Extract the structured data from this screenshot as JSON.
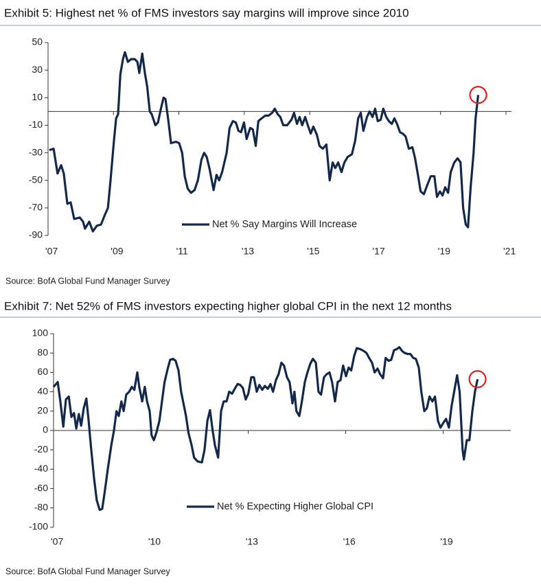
{
  "chart_data": [
    {
      "type": "line",
      "title": "Exhibit 5: Highest net % of FMS investors say margins will improve since 2010",
      "source": "Source: BofA Global Fund Manager Survey",
      "x": [
        2007.04,
        2007.17,
        2007.29,
        2007.4,
        2007.48,
        2007.59,
        2007.69,
        2007.8,
        2007.97,
        2008.07,
        2008.13,
        2008.26,
        2008.37,
        2008.49,
        2008.62,
        2008.72,
        2008.83,
        2008.91,
        2009.0,
        2009.08,
        2009.14,
        2009.21,
        2009.29,
        2009.35,
        2009.44,
        2009.54,
        2009.65,
        2009.73,
        2009.79,
        2009.88,
        2009.96,
        2010.03,
        2010.11,
        2010.17,
        2010.28,
        2010.36,
        2010.45,
        2010.53,
        2010.59,
        2010.68,
        2010.76,
        2010.91,
        2011.01,
        2011.1,
        2011.18,
        2011.27,
        2011.37,
        2011.48,
        2011.58,
        2011.69,
        2011.77,
        2011.85,
        2011.94,
        2012.06,
        2012.15,
        2012.23,
        2012.32,
        2012.46,
        2012.55,
        2012.65,
        2012.74,
        2012.82,
        2012.9,
        2012.99,
        2013.07,
        2013.18,
        2013.26,
        2013.35,
        2013.43,
        2013.53,
        2013.64,
        2013.74,
        2013.85,
        2013.93,
        2014.02,
        2014.1,
        2014.19,
        2014.31,
        2014.44,
        2014.52,
        2014.61,
        2014.69,
        2014.77,
        2014.86,
        2014.94,
        2015.03,
        2015.11,
        2015.22,
        2015.3,
        2015.4,
        2015.51,
        2015.61,
        2015.7,
        2015.78,
        2015.87,
        2015.97,
        2016.06,
        2016.16,
        2016.29,
        2016.39,
        2016.48,
        2016.56,
        2016.64,
        2016.75,
        2016.83,
        2016.92,
        2017.0,
        2017.08,
        2017.17,
        2017.25,
        2017.34,
        2017.42,
        2017.51,
        2017.59,
        2017.67,
        2017.76,
        2017.84,
        2017.93,
        2018.03,
        2018.14,
        2018.22,
        2018.3,
        2018.39,
        2018.49,
        2018.6,
        2018.7,
        2018.81,
        2018.89,
        2018.98,
        2019.06,
        2019.14,
        2019.23,
        2019.31,
        2019.42,
        2019.52,
        2019.61,
        2019.69,
        2019.77,
        2019.84,
        2019.92,
        2020.01,
        2020.07,
        2020.15
      ],
      "series": [
        {
          "name": "Net % Say Margins Will Increase",
          "color": "#14284b",
          "values": [
            -28,
            -27,
            -45,
            -39,
            -45,
            -67,
            -66,
            -78,
            -77,
            -80,
            -85,
            -80,
            -87,
            -83,
            -82,
            -76,
            -70,
            -50,
            -25,
            -5,
            -2,
            27,
            38,
            43,
            36,
            38,
            38,
            36,
            28,
            42,
            28,
            18,
            0,
            -2,
            -10,
            -8,
            2,
            10,
            9,
            -7,
            -23,
            -22,
            -23,
            -30,
            -47,
            -56,
            -59,
            -57,
            -50,
            -35,
            -30,
            -33,
            -42,
            -57,
            -46,
            -50,
            -44,
            -30,
            -12,
            -7,
            -8,
            -14,
            -15,
            -8,
            -20,
            -12,
            -13,
            -25,
            -7,
            -5,
            -3,
            -3,
            -1,
            2,
            -2,
            -4,
            -10,
            -10,
            -6,
            -1,
            -9,
            -4,
            -10,
            -4,
            -10,
            -16,
            -11,
            -17,
            -25,
            -27,
            -24,
            -50,
            -37,
            -41,
            -37,
            -44,
            -37,
            -33,
            -31,
            -21,
            -5,
            -1,
            -14,
            -4,
            0,
            -4,
            2,
            -7,
            -6,
            2,
            -4,
            -7,
            -9,
            -5,
            -9,
            -15,
            -16,
            -18,
            -27,
            -26,
            -34,
            -45,
            -58,
            -60,
            -53,
            -47,
            -47,
            -62,
            -58,
            -61,
            -55,
            -59,
            -44,
            -37,
            -34,
            -37,
            -70,
            -82,
            -84,
            -55,
            -30,
            -5,
            12
          ]
        }
      ],
      "xlim": [
        2007,
        2021
      ],
      "xticks": [
        {
          "value": 2007,
          "label": "'07"
        },
        {
          "value": 2009,
          "label": "'09"
        },
        {
          "value": 2011,
          "label": "'11"
        },
        {
          "value": 2013,
          "label": "'13"
        },
        {
          "value": 2015,
          "label": "'15"
        },
        {
          "value": 2017,
          "label": "'17"
        },
        {
          "value": 2019,
          "label": "'19"
        },
        {
          "value": 2021,
          "label": "'21"
        }
      ],
      "ylim": [
        -90,
        50
      ],
      "yticks": [
        -90,
        -70,
        -50,
        -30,
        -10,
        10,
        30,
        50
      ]
    },
    {
      "type": "line",
      "title": "Exhibit 7: Net 52% of FMS investors expecting higher global CPI in the next 12 months",
      "source": "Source: BofA Global Fund Manager Survey",
      "x": [
        2007.0,
        2007.13,
        2007.21,
        2007.3,
        2007.38,
        2007.47,
        2007.55,
        2007.63,
        2007.7,
        2007.78,
        2007.85,
        2007.93,
        2008.01,
        2008.08,
        2008.16,
        2008.25,
        2008.33,
        2008.42,
        2008.5,
        2008.59,
        2008.67,
        2008.78,
        2008.86,
        2008.94,
        2009.01,
        2009.09,
        2009.16,
        2009.24,
        2009.33,
        2009.41,
        2009.49,
        2009.58,
        2009.64,
        2009.73,
        2009.81,
        2009.88,
        2009.96,
        2010.02,
        2010.09,
        2010.17,
        2010.26,
        2010.34,
        2010.42,
        2010.51,
        2010.59,
        2010.68,
        2010.76,
        2010.85,
        2010.93,
        2011.02,
        2011.08,
        2011.16,
        2011.25,
        2011.33,
        2011.44,
        2011.57,
        2011.65,
        2011.74,
        2011.82,
        2011.9,
        2011.97,
        2012.07,
        2012.16,
        2012.24,
        2012.33,
        2012.41,
        2012.5,
        2012.58,
        2012.67,
        2012.75,
        2012.83,
        2012.92,
        2013.0,
        2013.09,
        2013.17,
        2013.26,
        2013.34,
        2013.43,
        2013.51,
        2013.6,
        2013.68,
        2013.76,
        2013.85,
        2013.93,
        2014.02,
        2014.1,
        2014.19,
        2014.27,
        2014.36,
        2014.42,
        2014.48,
        2014.57,
        2014.65,
        2014.74,
        2014.82,
        2014.91,
        2014.99,
        2015.08,
        2015.16,
        2015.24,
        2015.33,
        2015.41,
        2015.5,
        2015.58,
        2015.67,
        2015.75,
        2015.84,
        2015.92,
        2016.01,
        2016.09,
        2016.17,
        2016.26,
        2016.34,
        2016.45,
        2016.56,
        2016.64,
        2016.72,
        2016.81,
        2016.89,
        2016.98,
        2017.06,
        2017.15,
        2017.23,
        2017.32,
        2017.4,
        2017.49,
        2017.57,
        2017.65,
        2017.74,
        2017.82,
        2017.91,
        2017.99,
        2018.08,
        2018.16,
        2018.25,
        2018.33,
        2018.42,
        2018.5,
        2018.58,
        2018.67,
        2018.75,
        2018.84,
        2018.92,
        2019.01,
        2019.09,
        2019.18,
        2019.26,
        2019.35,
        2019.43,
        2019.51,
        2019.6,
        2019.64,
        2019.73,
        2019.81,
        2019.9,
        2019.98,
        2020.06
      ],
      "series": [
        {
          "name": "Net % Expecting Higher Global CPI",
          "color": "#14284b",
          "values": [
            45,
            50,
            30,
            4,
            32,
            35,
            14,
            18,
            2,
            17,
            5,
            23,
            33,
            10,
            -20,
            -50,
            -72,
            -82,
            -81,
            -60,
            -40,
            -15,
            0,
            20,
            15,
            30,
            20,
            37,
            40,
            45,
            42,
            60,
            45,
            30,
            45,
            30,
            20,
            -5,
            -10,
            -2,
            10,
            30,
            50,
            63,
            73,
            74,
            72,
            62,
            40,
            25,
            15,
            -3,
            -15,
            -28,
            -32,
            -33,
            -20,
            10,
            21,
            0,
            -15,
            -28,
            20,
            30,
            30,
            40,
            38,
            43,
            48,
            47,
            44,
            32,
            38,
            55,
            55,
            40,
            47,
            42,
            46,
            43,
            48,
            40,
            52,
            58,
            70,
            67,
            55,
            50,
            28,
            40,
            20,
            15,
            30,
            50,
            60,
            69,
            74,
            70,
            40,
            37,
            55,
            58,
            60,
            50,
            30,
            50,
            52,
            67,
            56,
            65,
            62,
            77,
            85,
            84,
            82,
            80,
            75,
            70,
            60,
            64,
            58,
            54,
            75,
            72,
            73,
            83,
            84,
            86,
            82,
            80,
            79,
            79,
            75,
            74,
            65,
            40,
            20,
            23,
            35,
            30,
            35,
            10,
            3,
            8,
            12,
            3,
            25,
            42,
            57,
            40,
            -20,
            -30,
            -10,
            -10,
            20,
            40,
            53
          ]
        }
      ],
      "xlim": [
        2007,
        2021
      ],
      "xticks": [
        {
          "value": 2007,
          "label": "'07"
        },
        {
          "value": 2010,
          "label": "'10"
        },
        {
          "value": 2013,
          "label": "'13"
        },
        {
          "value": 2016,
          "label": "'16"
        },
        {
          "value": 2019,
          "label": "'19"
        }
      ],
      "ylim": [
        -100,
        100
      ],
      "yticks": [
        -100,
        -80,
        -60,
        -40,
        -20,
        0,
        20,
        40,
        60,
        80,
        100
      ]
    }
  ]
}
